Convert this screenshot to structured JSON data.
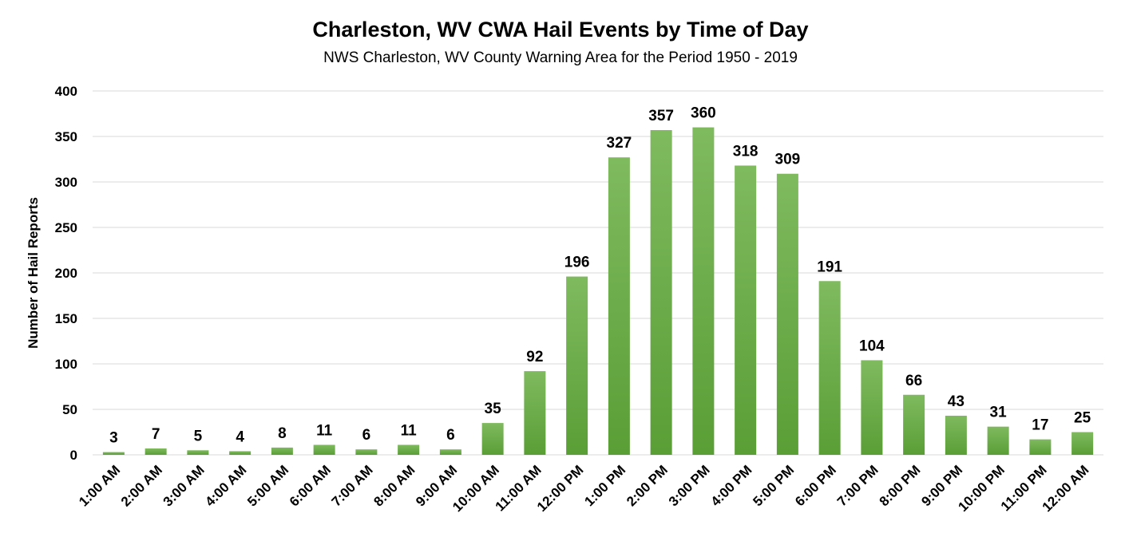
{
  "chart_data": {
    "type": "bar",
    "title": "Charleston, WV CWA Hail Events by Time of Day",
    "subtitle": "NWS Charleston, WV County Warning Area for the Period 1950 - 2019",
    "xlabel": "",
    "ylabel": "Number of Hail Reports",
    "ylim": [
      0,
      400
    ],
    "yticks": [
      0,
      50,
      100,
      150,
      200,
      250,
      300,
      350,
      400
    ],
    "grid": true,
    "categories": [
      "1:00 AM",
      "2:00 AM",
      "3:00 AM",
      "4:00 AM",
      "5:00 AM",
      "6:00 AM",
      "7:00 AM",
      "8:00 AM",
      "9:00 AM",
      "10:00 AM",
      "11:00 AM",
      "12:00 PM",
      "1:00 PM",
      "2:00 PM",
      "3:00 PM",
      "4:00 PM",
      "5:00 PM",
      "6:00 PM",
      "7:00 PM",
      "8:00 PM",
      "9:00 PM",
      "10:00 PM",
      "11:00 PM",
      "12:00 AM"
    ],
    "values": [
      3,
      7,
      5,
      4,
      8,
      11,
      6,
      11,
      6,
      35,
      92,
      196,
      327,
      357,
      360,
      318,
      309,
      191,
      104,
      66,
      43,
      31,
      17,
      25
    ],
    "colors": {
      "bar_top": "#7fba5f",
      "bar_bottom": "#5a9e36",
      "grid": "#d9d9d9"
    }
  }
}
